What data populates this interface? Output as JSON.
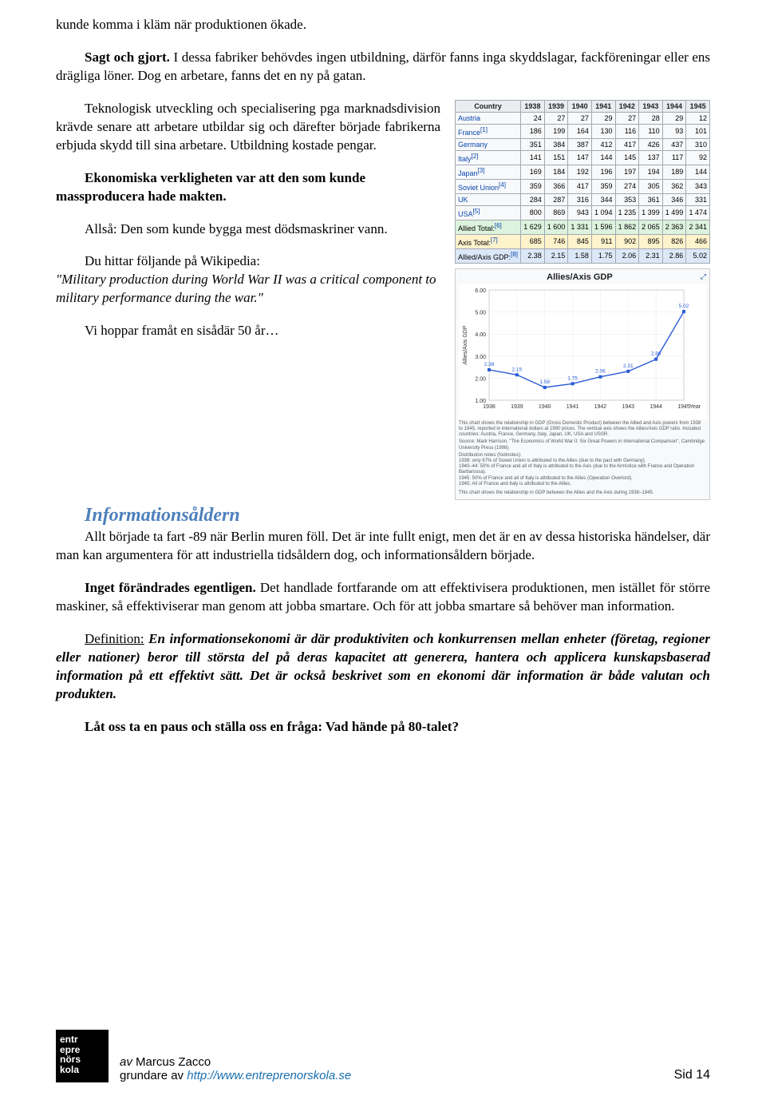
{
  "body": {
    "p1": "kunde komma i kläm när produktionen ökade.",
    "p2a": "Sagt och gjort.",
    "p2b": " I dessa fabriker behövdes ingen utbildning, därför fanns inga skyddslagar, fackföreningar eller ens drägliga löner. Dog en arbetare, fanns det en ny på gatan.",
    "p3": "Teknologisk utveckling och specialisering pga marknadsdivision krävde senare att arbetare utbildar sig och därefter började fabrikerna erbjuda skydd till sina arbetare. Utbildning kostade pengar.",
    "p4a": "Ekonomiska verkligheten var att den som kunde massproducera hade makten.",
    "p5": "Allså: Den som kunde bygga mest dödsmaskriner vann.",
    "p6a": "Du hittar följande på Wikipedia:",
    "p6b": "\"Military production during World War II was a critical component to military performance during the war.\"",
    "p7": "Vi hoppar framåt en sisådär 50 år…",
    "heading": "Informationsåldern",
    "p8": "Allt började ta fart -89 när Berlin muren föll. Det är inte fullt enigt, men det är en av dessa historiska händelser, där man kan argumentera för att industriella tidsåldern dog, och informationsåldern började.",
    "p9a": "Inget förändrades egentligen.",
    "p9b": " Det handlade fortfarande om att effektivisera produktionen, men istället för större maskiner, så effektiviserar man genom att jobba smartare. Och för att jobba smartare så behöver man information.",
    "p10a": "Definition:",
    "p10b": " En informationsekonomi är där produktiviten och konkurrensen mellan enheter (företag, regioner eller nationer) beror till största del på deras kapacitet att generera, hantera och applicera kunskapsbaserad information på ett effektivt sätt. Det är också beskrivet som en ekonomi där information är både valutan och produkten.",
    "p11": "Låt oss ta en paus och ställa oss en fråga: Vad hände på 80-talet?"
  },
  "table": {
    "header": [
      "Country",
      "1938",
      "1939",
      "1940",
      "1941",
      "1942",
      "1943",
      "1944",
      "1945"
    ],
    "rows": [
      {
        "label": "Austria",
        "sup": "",
        "vals": [
          "24",
          "27",
          "27",
          "29",
          "27",
          "28",
          "29",
          "12"
        ]
      },
      {
        "label": "France",
        "sup": "[1]",
        "vals": [
          "186",
          "199",
          "164",
          "130",
          "116",
          "110",
          "93",
          "101"
        ]
      },
      {
        "label": "Germany",
        "sup": "",
        "vals": [
          "351",
          "384",
          "387",
          "412",
          "417",
          "426",
          "437",
          "310"
        ]
      },
      {
        "label": "Italy",
        "sup": "[2]",
        "vals": [
          "141",
          "151",
          "147",
          "144",
          "145",
          "137",
          "117",
          "92"
        ]
      },
      {
        "label": "Japan",
        "sup": "[3]",
        "vals": [
          "169",
          "184",
          "192",
          "196",
          "197",
          "194",
          "189",
          "144"
        ]
      },
      {
        "label": "Soviet Union",
        "sup": "[4]",
        "vals": [
          "359",
          "366",
          "417",
          "359",
          "274",
          "305",
          "362",
          "343"
        ]
      },
      {
        "label": "UK",
        "sup": "",
        "vals": [
          "284",
          "287",
          "316",
          "344",
          "353",
          "361",
          "346",
          "331"
        ]
      },
      {
        "label": "USA",
        "sup": "[5]",
        "vals": [
          "800",
          "869",
          "943",
          "1 094",
          "1 235",
          "1 399",
          "1 499",
          "1 474"
        ]
      }
    ],
    "allied": {
      "label": "Allied Total:",
      "sup": "[6]",
      "vals": [
        "1 629",
        "1 600",
        "1 331",
        "1 596",
        "1 862",
        "2 065",
        "2 363",
        "2 341"
      ]
    },
    "axis": {
      "label": "Axis Total:",
      "sup": "[7]",
      "vals": [
        "685",
        "746",
        "845",
        "911",
        "902",
        "895",
        "826",
        "466"
      ]
    },
    "ratio": {
      "label": "Allied/Axis GDP:",
      "sup": "[8]",
      "vals": [
        "2.38",
        "2.15",
        "1.58",
        "1.75",
        "2.06",
        "2.31",
        "2.86",
        "5.02"
      ]
    }
  },
  "chart": {
    "title": "Allies/Axis GDP",
    "x": [
      1938,
      1939,
      1940,
      1941,
      1942,
      1943,
      1944,
      1945
    ],
    "y": [
      2.38,
      2.15,
      1.58,
      1.75,
      2.06,
      2.31,
      2.86,
      5.02
    ],
    "xlim": [
      1938,
      1945
    ],
    "ylim": [
      1.0,
      6.0
    ],
    "yticks": [
      1.0,
      2.0,
      3.0,
      4.0,
      5.0,
      6.0
    ],
    "line_color": "#2a5bd7",
    "marker_color": "#2a5bd7",
    "grid_color": "#e8e8e8",
    "bg": "#ffffff",
    "axis_label_y": "Allies/Axis GDP",
    "axis_label_x": "Year",
    "caption1": "This chart shows the relationship in GDP (Gross Domestic Product) between the Allied and Axis powers from 1938 to 1945, reported in international dollars at 1990 prices. The vertical axis shows the Allies/Axis GDP ratio. Included countries: Austria, France, Germany, Italy, Japan, UK, USA and USSR.",
    "caption2": "Source: Mark Harrison, \"The Economics of World War II: Six Great Powers in International Comparison\", Cambridge University Press (1998).",
    "caption3": "Distribution notes (footnotes):\n1938: only 67% of Soviet Union is attributed to the Allies (due to the pact with Germany).\n1940–44: 50% of France and all of Italy is attributed to the Axis (due to the Armistice with France and Operation Barbarossa).\n1945: 50% of France and all of Italy is attributed to the Allies (Operation Overlord).\n1945: All of France and Italy is attributed to the Allies.",
    "caption4": "This chart shows the relationship in GDP between the Allies and the Axis during 1938–1945.",
    "enlarge_icon": "⤢"
  },
  "footer": {
    "logo_text": "entr\nepre\nnörs\nkola",
    "by_prefix": "av ",
    "by_name": "Marcus Zacco",
    "founder_prefix": "grundare av ",
    "url": "http://www.entreprenorskola.se",
    "page_label": "Sid 14"
  }
}
